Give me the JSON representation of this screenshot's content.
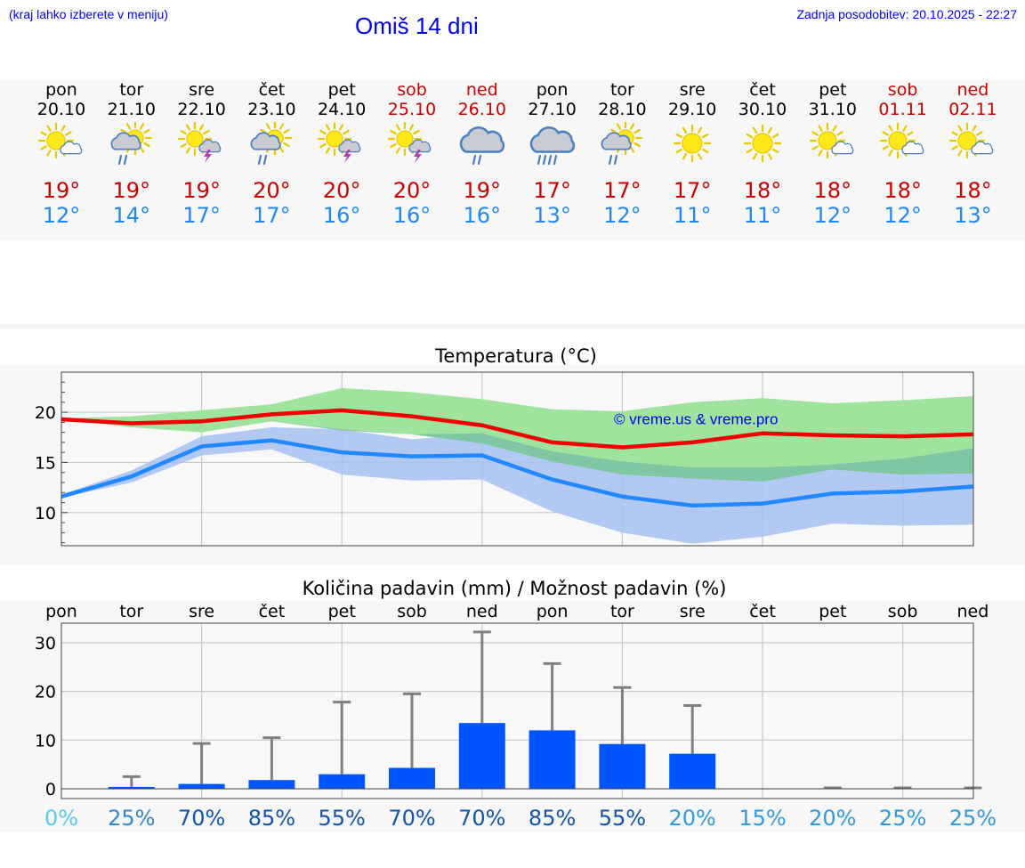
{
  "header": {
    "hint": "(kraj lahko izberete v meniju)",
    "title": "Omiš 14 dni",
    "updated": "Zadnja posodobitev: 20.10.2025 - 22:27"
  },
  "colors": {
    "max_temp": "#ee0000",
    "min_temp": "#2288ff",
    "max_band": "#9fe39f",
    "min_band": "#a6c1f1",
    "overlap_band": "#7fc7a3",
    "precip_bar": "#0055ff",
    "error_bar": "#808080",
    "weekend": "#cc0000",
    "link": "#0000ee"
  },
  "days": [
    {
      "name": "pon",
      "date": "20.10",
      "icon": "sun-partly-cloudy-icon",
      "tmax": "19°",
      "tmin": "12°",
      "weekend": false
    },
    {
      "name": "tor",
      "date": "21.10",
      "icon": "sun-cloud-rain-icon",
      "tmax": "19°",
      "tmin": "14°",
      "weekend": false
    },
    {
      "name": "sre",
      "date": "22.10",
      "icon": "sun-cloud-thunder-icon",
      "tmax": "19°",
      "tmin": "17°",
      "weekend": false
    },
    {
      "name": "čet",
      "date": "23.10",
      "icon": "sun-cloud-rain-icon",
      "tmax": "20°",
      "tmin": "17°",
      "weekend": false
    },
    {
      "name": "pet",
      "date": "24.10",
      "icon": "sun-cloud-thunder-icon",
      "tmax": "20°",
      "tmin": "16°",
      "weekend": false
    },
    {
      "name": "sob",
      "date": "25.10",
      "icon": "sun-cloud-thunder-icon",
      "tmax": "20°",
      "tmin": "16°",
      "weekend": true
    },
    {
      "name": "ned",
      "date": "26.10",
      "icon": "cloud-rain-icon",
      "tmax": "19°",
      "tmin": "16°",
      "weekend": true
    },
    {
      "name": "pon",
      "date": "27.10",
      "icon": "cloud-heavy-rain-icon",
      "tmax": "17°",
      "tmin": "13°",
      "weekend": false
    },
    {
      "name": "tor",
      "date": "28.10",
      "icon": "sun-cloud-rain-icon",
      "tmax": "17°",
      "tmin": "12°",
      "weekend": false
    },
    {
      "name": "sre",
      "date": "29.10",
      "icon": "sun-icon",
      "tmax": "17°",
      "tmin": "11°",
      "weekend": false
    },
    {
      "name": "čet",
      "date": "30.10",
      "icon": "sun-icon",
      "tmax": "18°",
      "tmin": "11°",
      "weekend": false
    },
    {
      "name": "pet",
      "date": "31.10",
      "icon": "sun-partly-cloudy-icon",
      "tmax": "18°",
      "tmin": "12°",
      "weekend": false
    },
    {
      "name": "sob",
      "date": "01.11",
      "icon": "sun-partly-cloudy-icon",
      "tmax": "18°",
      "tmin": "12°",
      "weekend": true
    },
    {
      "name": "ned",
      "date": "02.11",
      "icon": "sun-partly-cloudy-icon",
      "tmax": "18°",
      "tmin": "13°",
      "weekend": true
    }
  ],
  "chart_data": [
    {
      "type": "line",
      "title": "Temperatura (°C)",
      "watermark": "© vreme.us & vreme.pro",
      "ylim": [
        6.7,
        24
      ],
      "yticks": [
        10,
        15,
        20
      ],
      "grid": true,
      "series": [
        {
          "values": [
            19.3,
            18.9,
            19.1,
            19.8,
            20.2,
            19.6,
            18.7,
            17.0,
            16.5,
            17.0,
            17.9,
            17.7,
            17.6,
            17.8
          ],
          "band_high": [
            19.4,
            19.6,
            20.2,
            20.8,
            22.4,
            22.0,
            21.3,
            20.3,
            20.1,
            21.0,
            21.4,
            20.9,
            21.2,
            21.6
          ],
          "band_low": [
            19.3,
            18.5,
            18.0,
            19.1,
            18.2,
            17.8,
            16.9,
            15.1,
            13.8,
            13.4,
            13.1,
            14.3,
            13.8,
            13.9
          ]
        },
        {
          "values": [
            11.6,
            13.6,
            16.6,
            17.2,
            16.0,
            15.6,
            15.7,
            13.3,
            11.6,
            10.7,
            10.9,
            11.9,
            12.1,
            12.6
          ],
          "band_high": [
            11.8,
            14.2,
            17.6,
            18.5,
            18.3,
            17.3,
            17.9,
            16.1,
            15.1,
            14.5,
            14.5,
            14.8,
            15.4,
            16.4
          ],
          "band_low": [
            11.5,
            13.0,
            15.7,
            16.3,
            13.8,
            13.2,
            13.3,
            10.1,
            8.0,
            6.9,
            7.6,
            8.9,
            8.7,
            8.8
          ]
        }
      ]
    },
    {
      "type": "bar",
      "title": "Količina padavin (mm) / Možnost padavin (%)",
      "categories": [
        "pon",
        "tor",
        "sre",
        "čet",
        "pet",
        "sob",
        "ned",
        "pon",
        "tor",
        "sre",
        "čet",
        "pet",
        "sob",
        "ned"
      ],
      "ylim": [
        -2,
        34
      ],
      "yticks": [
        0,
        10,
        20,
        30
      ],
      "grid": true,
      "values": [
        0,
        0.4,
        1.0,
        1.8,
        3.0,
        4.3,
        13.5,
        12.0,
        9.2,
        7.2,
        0,
        0,
        0,
        0
      ],
      "error_high": [
        0,
        2.5,
        9.3,
        10.5,
        17.8,
        19.5,
        32.2,
        25.7,
        20.8,
        17.1,
        0,
        0.2,
        0.2,
        0.2
      ],
      "probability": [
        "0%",
        "25%",
        "70%",
        "85%",
        "55%",
        "70%",
        "70%",
        "85%",
        "55%",
        "20%",
        "15%",
        "20%",
        "25%",
        "25%"
      ],
      "probability_colors": [
        "#55ccee",
        "#3388cc",
        "#1155aa",
        "#1155aa",
        "#1155aa",
        "#1155aa",
        "#1155aa",
        "#1155aa",
        "#1155aa",
        "#3399dd",
        "#3399dd",
        "#3399dd",
        "#3399dd",
        "#3399dd"
      ]
    }
  ]
}
